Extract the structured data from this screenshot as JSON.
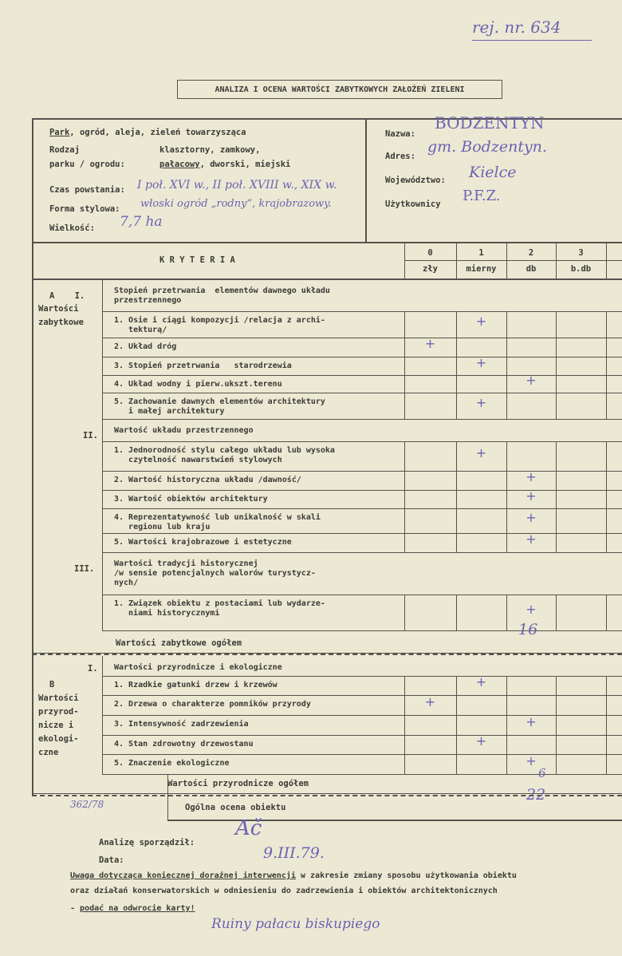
{
  "registry_note": "rej. nr. 634",
  "title": "ANALIZA I OCENA WARTOŚCI ZABYTKOWYCH ZAŁOŻEŃ ZIELENI",
  "info_left": {
    "type_line": "Park, ogród, aleja, zieleń towarzysząca",
    "type_underlined": "Park",
    "type_rest": ", ogród, aleja, zieleń towarzysząca",
    "rodzaj_label_1": "Rodzaj",
    "rodzaj_label_2": "parku / ogrodu:",
    "rodzaj_options_1": "klasztorny, zamkowy,",
    "rodzaj_selected": "pałacowy",
    "rodzaj_options_2": ", dworski, miejski",
    "czas_label": "Czas powstania:",
    "czas_value": "I poł. XVI w., II poł. XVIII w., XIX w.",
    "forma_label": "Forma stylowa:",
    "forma_value": "włoski ogród „rodny”, krajobrazowy.",
    "wielkosc_label": "Wielkość:",
    "wielkosc_value": "7,7 ha"
  },
  "info_right": {
    "nazwa_label": "Nazwa:",
    "nazwa_value": "BODZENTYN",
    "adres_label": "Adres:",
    "adres_value": "gm. Bodzentyn.",
    "wojewodztwo_label": "Województwo:",
    "wojewodztwo_value": "Kielce",
    "uzytkownicy_label": "Użytkownicy",
    "uzytkownicy_value": "P.F.Z."
  },
  "header": {
    "kryteria": "K R Y T E R I A",
    "scores": [
      "0",
      "1",
      "2",
      "3"
    ],
    "score_labels": [
      "zły",
      "mierny",
      "db",
      "b.db"
    ]
  },
  "group_a": {
    "label_1": "A    I.",
    "label_2": "Wartości",
    "label_3": "zabytkowe"
  },
  "section_ii": "II.",
  "section_iii": "III.",
  "group_b": {
    "label_1": "I.",
    "label_2": "B",
    "label_3": "Wartości",
    "label_4": "przyrod-",
    "label_5": "nicze i",
    "label_6": "ekologi-",
    "label_7": "czne"
  },
  "rows": [
    {
      "text": "Stopień przetrwania  elementów dawnego układu\nprzestrzennego",
      "heading": true
    },
    {
      "text": "1. Osie i ciągi kompozycji /relacja z archi-\n   tekturą/",
      "mark": 1
    },
    {
      "text": "2. Układ dróg",
      "mark": 0
    },
    {
      "text": "3. Stopień przetrwania   starodrzewia",
      "mark": 1
    },
    {
      "text": "4. Układ wodny i pierw.ukszt.terenu",
      "mark": 2
    },
    {
      "text": "5. Zachowanie dawnych elementów architektury\n   i małej architektury",
      "mark": 1
    },
    {
      "text": "Wartość układu przestrzennego",
      "heading": true
    },
    {
      "text": "1. Jednorodność stylu całego układu lub wysoka\n   czytelność nawarstwień stylowych",
      "mark": 1
    },
    {
      "text": "2. Wartość historyczna układu /dawność/",
      "mark": 2
    },
    {
      "text": "3. Wartość obiektów architektury",
      "mark": 2
    },
    {
      "text": "4. Reprezentatywność lub unikalność w skali\n   regionu lub kraju",
      "mark": 2
    },
    {
      "text": "5. Wartości krajobrazowe i estetyczne",
      "mark": 2
    },
    {
      "text": "Wartości tradycji historycznej\n/w sensie potencjalnych walorów turystycz-\nnych/",
      "heading": true
    },
    {
      "text": "1. Związek obiektu z postaciami lub wydarze-\n   niami historycznymi",
      "mark": 2
    }
  ],
  "total_a": {
    "label": "Wartości zabytkowe ogółem",
    "value": "16"
  },
  "rows_b": [
    {
      "text": "Wartości przyrodnicze i ekologiczne",
      "heading": true
    },
    {
      "text": "1. Rzadkie gatunki drzew i krzewów",
      "mark": 1
    },
    {
      "text": "2. Drzewa o charakterze pomników przyrody",
      "mark": 0
    },
    {
      "text": "3. Intensywność zadrzewienia",
      "mark": 2
    },
    {
      "text": "4. Stan zdrowotny drzewostanu",
      "mark": 1
    },
    {
      "text": "5. Znaczenie ekologiczne",
      "mark": 2
    }
  ],
  "mark_symbol": "+",
  "total_b": {
    "label": "Wartości przyrodnicze ogółem",
    "value": "6"
  },
  "overall": {
    "label": "Ogólna ocena obiektu",
    "value": "22"
  },
  "archive_number": "362/78",
  "footer": {
    "author_label": "Analizę sporządził:",
    "author_signature": "Ač",
    "date_label": "Data:",
    "date_value": "9.III.79.",
    "note_underlined": "Uwaga dotycząca koniecznej doraźnej interwencji",
    "note_rest_1": " w zakresie zmiany sposobu użytkowania obiektu",
    "note_line_2": "oraz działań konserwatorskich w odniesieniu do zadrzewienia i obiektów architektonicznych",
    "note_line_3_prefix": "- ",
    "note_line_3_underlined": "podać na odwrocie karty!",
    "handwritten_note": "Ruiny pałacu biskupiego"
  },
  "colors": {
    "paper": "#ebe9d3",
    "ink": "#3c3a36",
    "handwriting": "#6c62b4"
  }
}
